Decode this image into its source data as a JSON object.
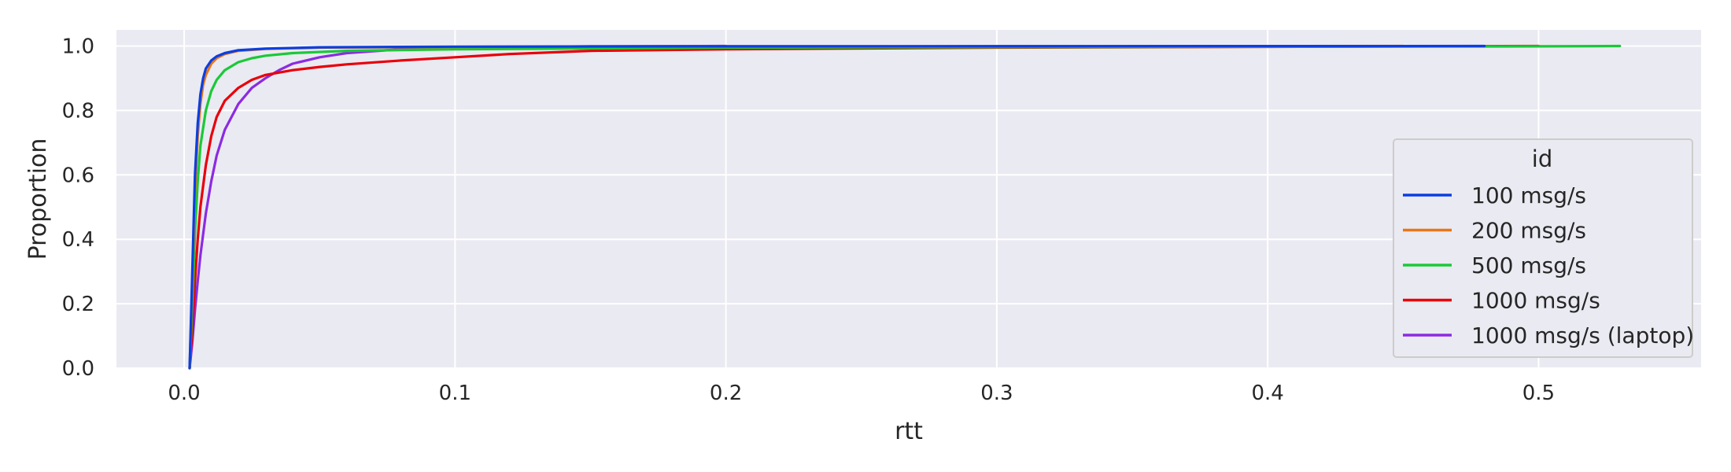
{
  "chart_data": {
    "type": "line",
    "subtype": "ecdf",
    "title": "",
    "xlabel": "rtt",
    "ylabel": "Proportion",
    "xlim": [
      -0.025,
      0.56
    ],
    "ylim": [
      0.0,
      1.05
    ],
    "xticks": [
      0.0,
      0.1,
      0.2,
      0.3,
      0.4,
      0.5
    ],
    "xtick_labels": [
      "0.0",
      "0.1",
      "0.2",
      "0.3",
      "0.4",
      "0.5"
    ],
    "yticks": [
      0.0,
      0.2,
      0.4,
      0.6,
      0.8,
      1.0
    ],
    "ytick_labels": [
      "0.0",
      "0.2",
      "0.4",
      "0.6",
      "0.8",
      "1.0"
    ],
    "grid": true,
    "background": "#eaeaf2",
    "legend": {
      "title": "id",
      "position": "right"
    },
    "series": [
      {
        "name": "100 msg/s",
        "color": "#0a3fe0",
        "x": [
          0.002,
          0.003,
          0.004,
          0.005,
          0.006,
          0.007,
          0.008,
          0.01,
          0.012,
          0.015,
          0.02,
          0.03,
          0.05,
          0.1,
          0.2,
          0.48
        ],
        "y": [
          0.0,
          0.3,
          0.6,
          0.76,
          0.85,
          0.9,
          0.93,
          0.955,
          0.968,
          0.978,
          0.987,
          0.992,
          0.996,
          0.998,
          0.999,
          1.0
        ]
      },
      {
        "name": "200 msg/s",
        "color": "#e8761a",
        "x": [
          0.002,
          0.003,
          0.004,
          0.005,
          0.006,
          0.007,
          0.008,
          0.01,
          0.012,
          0.015,
          0.02,
          0.03,
          0.05,
          0.1,
          0.2,
          0.45
        ],
        "y": [
          0.0,
          0.27,
          0.55,
          0.72,
          0.82,
          0.88,
          0.91,
          0.945,
          0.962,
          0.975,
          0.985,
          0.991,
          0.995,
          0.997,
          0.999,
          1.0
        ]
      },
      {
        "name": "500 msg/s",
        "color": "#1ac938",
        "x": [
          0.002,
          0.003,
          0.004,
          0.005,
          0.006,
          0.008,
          0.01,
          0.012,
          0.015,
          0.02,
          0.025,
          0.03,
          0.04,
          0.06,
          0.1,
          0.2,
          0.5,
          0.53
        ],
        "y": [
          0.0,
          0.2,
          0.42,
          0.58,
          0.69,
          0.8,
          0.86,
          0.895,
          0.925,
          0.95,
          0.962,
          0.97,
          0.978,
          0.985,
          0.99,
          0.995,
          0.999,
          1.0
        ]
      },
      {
        "name": "1000 msg/s",
        "color": "#e8000b",
        "x": [
          0.002,
          0.003,
          0.004,
          0.005,
          0.006,
          0.008,
          0.01,
          0.012,
          0.015,
          0.02,
          0.025,
          0.03,
          0.04,
          0.05,
          0.06,
          0.08,
          0.1,
          0.12,
          0.15,
          0.2,
          0.3,
          0.5
        ],
        "y": [
          0.0,
          0.12,
          0.27,
          0.4,
          0.5,
          0.63,
          0.72,
          0.78,
          0.83,
          0.87,
          0.895,
          0.91,
          0.925,
          0.935,
          0.943,
          0.955,
          0.965,
          0.975,
          0.985,
          0.99,
          0.995,
          1.0
        ]
      },
      {
        "name": "1000 msg/s (laptop)",
        "color": "#8b2be2",
        "x": [
          0.002,
          0.003,
          0.004,
          0.005,
          0.006,
          0.008,
          0.01,
          0.012,
          0.015,
          0.02,
          0.025,
          0.03,
          0.035,
          0.04,
          0.05,
          0.06,
          0.08,
          0.1,
          0.15,
          0.2
        ],
        "y": [
          0.0,
          0.08,
          0.18,
          0.27,
          0.35,
          0.48,
          0.58,
          0.66,
          0.74,
          0.82,
          0.87,
          0.9,
          0.925,
          0.945,
          0.965,
          0.978,
          0.99,
          0.995,
          0.999,
          1.0
        ]
      }
    ]
  }
}
